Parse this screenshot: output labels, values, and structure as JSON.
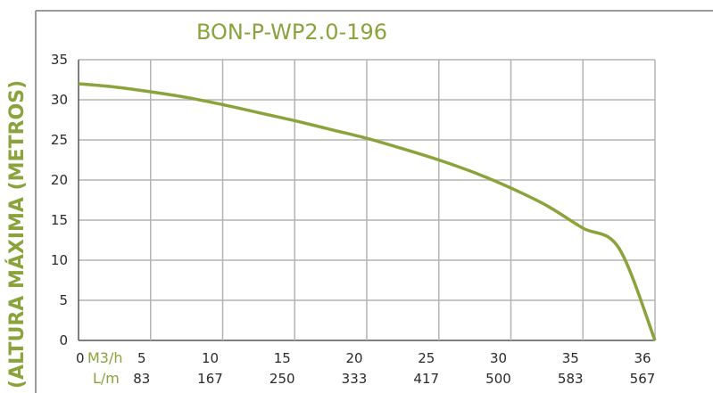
{
  "chart_data": {
    "type": "line",
    "title": "BON-P-WP2.0-196",
    "ylabel": "(ALTURA MÁXIMA (METROS)",
    "ylim": [
      0,
      35
    ],
    "y_ticks": [
      "0",
      "5",
      "10",
      "15",
      "20",
      "25",
      "30",
      "35"
    ],
    "x_origin_label": "0",
    "x_unit_labels": [
      "M3/h",
      "L/m"
    ],
    "x_categories_m3h": [
      "5",
      "10",
      "15",
      "20",
      "25",
      "30",
      "35",
      "36"
    ],
    "x_categories_lm": [
      "83",
      "167",
      "250",
      "333",
      "417",
      "500",
      "583",
      "567"
    ],
    "grid": true,
    "series": [
      {
        "x": [
          0,
          2.5,
          5,
          7.5,
          10,
          12.5,
          15,
          17.5,
          20,
          22.5,
          25,
          27.5,
          30,
          32.5,
          35,
          36,
          37
        ],
        "y": [
          32,
          31.6,
          31,
          30.3,
          29.4,
          28.4,
          27.4,
          26.3,
          25.2,
          23.9,
          22.5,
          20.9,
          19,
          16.8,
          14,
          11.5,
          0
        ]
      }
    ],
    "color": "#8aa33c"
  }
}
